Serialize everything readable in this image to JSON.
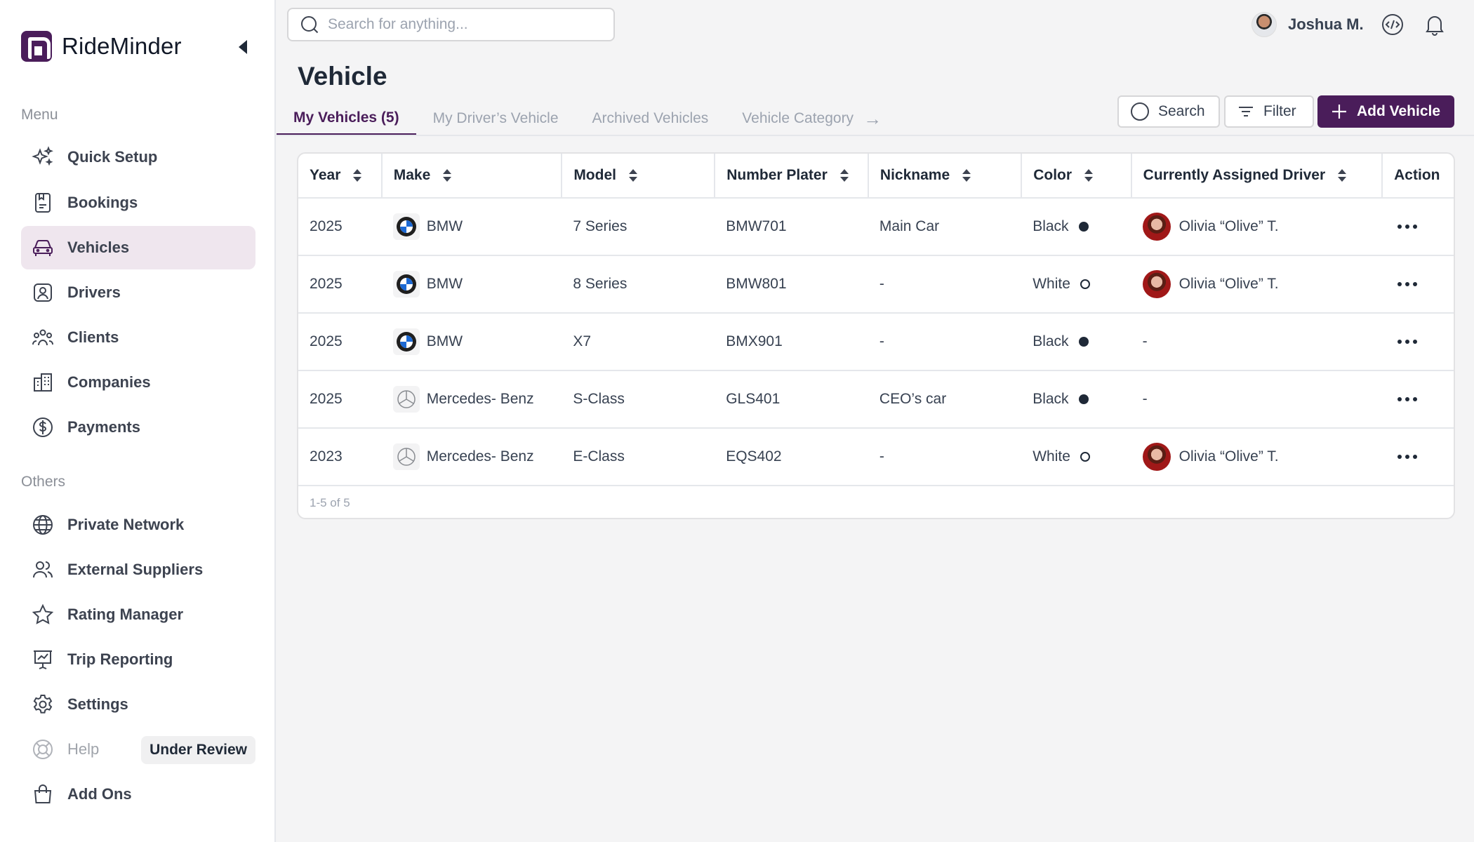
{
  "app": {
    "name": "RideMinder"
  },
  "sidebar": {
    "menu_label": "Menu",
    "others_label": "Others",
    "menu_items": [
      {
        "label": "Quick Setup",
        "icon": "sparkles-icon"
      },
      {
        "label": "Bookings",
        "icon": "bookings-icon"
      },
      {
        "label": "Vehicles",
        "icon": "car-icon"
      },
      {
        "label": "Drivers",
        "icon": "driver-icon"
      },
      {
        "label": "Clients",
        "icon": "clients-icon"
      },
      {
        "label": "Companies",
        "icon": "building-icon"
      },
      {
        "label": "Payments",
        "icon": "dollar-icon"
      }
    ],
    "other_items": [
      {
        "label": "Private Network",
        "icon": "globe-icon"
      },
      {
        "label": "External Suppliers",
        "icon": "users-icon"
      },
      {
        "label": "Rating Manager",
        "icon": "star-icon"
      },
      {
        "label": "Trip Reporting",
        "icon": "presentation-icon"
      },
      {
        "label": "Settings",
        "icon": "gear-icon"
      },
      {
        "label": "Help",
        "icon": "lifebuoy-icon",
        "badge": "Under Review"
      },
      {
        "label": "Add Ons",
        "icon": "bag-icon"
      }
    ],
    "active": "Vehicles"
  },
  "topbar": {
    "search_placeholder": "Search for anything...",
    "user_name": "Joshua M."
  },
  "page": {
    "title": "Vehicle",
    "tabs": [
      {
        "label": "My Vehicles (5)"
      },
      {
        "label": "My Driver’s Vehicle"
      },
      {
        "label": "Archived Vehicles"
      },
      {
        "label": "Vehicle Category"
      }
    ],
    "actions": {
      "search": "Search",
      "filter": "Filter",
      "add": "Add Vehicle"
    }
  },
  "table": {
    "columns": [
      "Year",
      "Make",
      "Model",
      "Number Plater",
      "Nickname",
      "Color",
      "Currently Assigned Driver",
      "Action"
    ],
    "rows": [
      {
        "year": "2025",
        "make": "BMW",
        "model": "7 Series",
        "plate": "BMW701",
        "nickname": "Main Car",
        "color": "Black",
        "driver": "Olivia “Olive” T."
      },
      {
        "year": "2025",
        "make": "BMW",
        "model": "8 Series",
        "plate": "BMW801",
        "nickname": "-",
        "color": "White",
        "driver": "Olivia “Olive” T."
      },
      {
        "year": "2025",
        "make": "BMW",
        "model": "X7",
        "plate": "BMX901",
        "nickname": "-",
        "color": "Black",
        "driver": "-"
      },
      {
        "year": "2025",
        "make": "Mercedes- Benz",
        "model": "S-Class",
        "plate": "GLS401",
        "nickname": "CEO’s car",
        "color": "Black",
        "driver": "-"
      },
      {
        "year": "2023",
        "make": "Mercedes- Benz",
        "model": "E-Class",
        "plate": "EQS402",
        "nickname": "-",
        "color": "White",
        "driver": "Olivia “Olive” T."
      }
    ],
    "pagination": "1-5 of 5"
  },
  "colors": {
    "accent": "#4a1d5a",
    "active_bg": "#efe6ee"
  }
}
